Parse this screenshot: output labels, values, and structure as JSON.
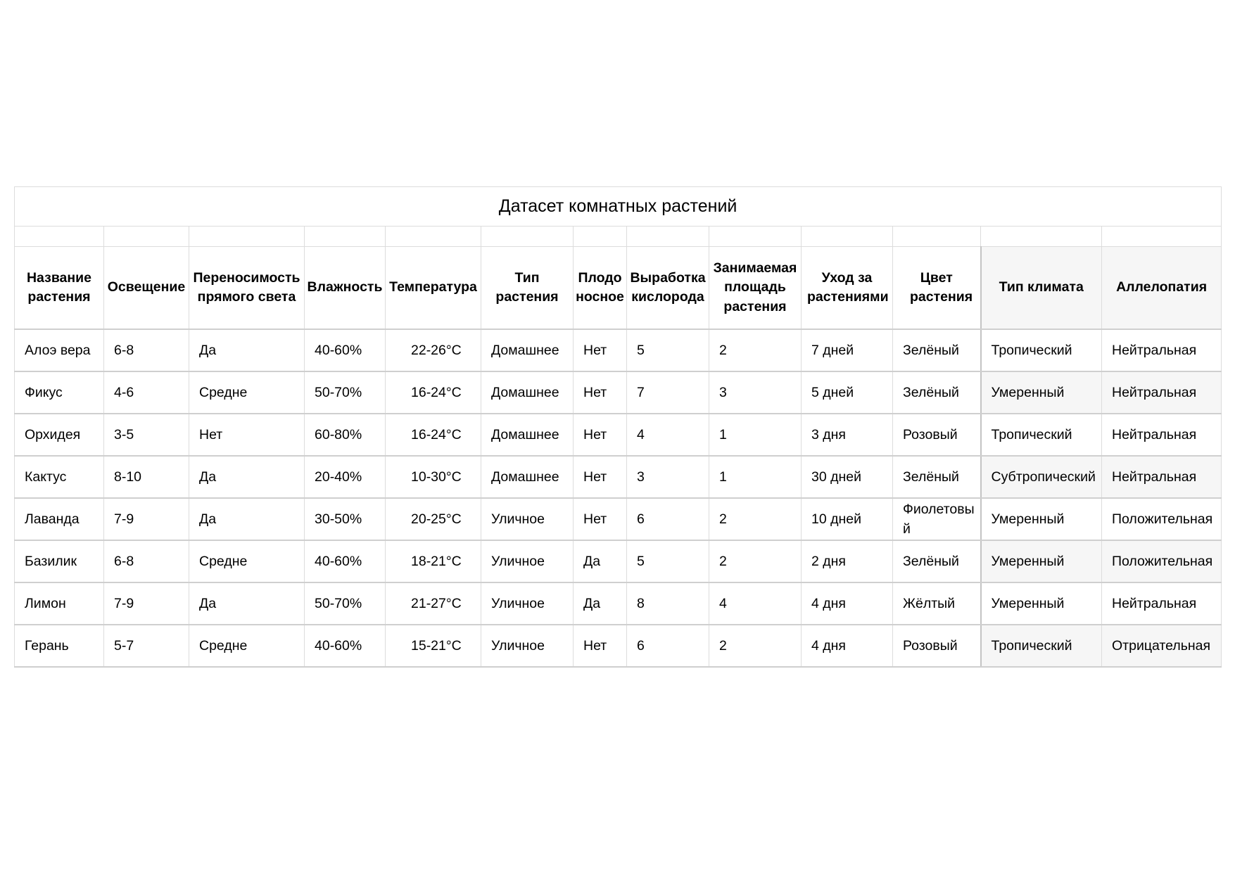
{
  "title": "Датасет комнатных растений",
  "columns": [
    "Название растения",
    "Освещение",
    "Переносимость прямого света",
    "Влажность",
    "Температура",
    "Тип растения",
    "Плодо носное",
    "Выработка кислорода",
    "Занимаемая площадь растения",
    "Уход за растениями",
    "Цвет растения",
    "Тип климата",
    "Аллелопатия"
  ],
  "rows": [
    [
      "Алоэ вера",
      "6-8",
      "Да",
      "40-60%",
      "22-26°C",
      "Домашнее",
      "Нет",
      "5",
      "2",
      "7 дней",
      "Зелёный",
      "Тропический",
      "Нейтральная"
    ],
    [
      "Фикус",
      "4-6",
      "Средне",
      "50-70%",
      "16-24°C",
      "Домашнее",
      "Нет",
      "7",
      "3",
      "5 дней",
      "Зелёный",
      "Умеренный",
      "Нейтральная"
    ],
    [
      "Орхидея",
      "3-5",
      "Нет",
      "60-80%",
      "16-24°C",
      "Домашнее",
      "Нет",
      "4",
      "1",
      "3 дня",
      "Розовый",
      "Тропический",
      "Нейтральная"
    ],
    [
      "Кактус",
      "8-10",
      "Да",
      "20-40%",
      "10-30°C",
      "Домашнее",
      "Нет",
      "3",
      "1",
      "30 дней",
      "Зелёный",
      "Субтропический",
      "Нейтральная"
    ],
    [
      "Лаванда",
      "7-9",
      "Да",
      "30-50%",
      "20-25°C",
      "Уличное",
      "Нет",
      "6",
      "2",
      "10 дней",
      "Фиолетовый",
      "Умеренный",
      "Положительная"
    ],
    [
      "Базилик",
      "6-8",
      "Средне",
      "40-60%",
      "18-21°C",
      "Уличное",
      "Да",
      "5",
      "2",
      "2 дня",
      "Зелёный",
      "Умеренный",
      "Положительная"
    ],
    [
      "Лимон",
      "7-9",
      "Да",
      "50-70%",
      "21-27°C",
      "Уличное",
      "Да",
      "8",
      "4",
      "4 дня",
      "Жёлтый",
      "Умеренный",
      "Нейтральная"
    ],
    [
      "Герань",
      "5-7",
      "Средне",
      "40-60%",
      "15-21°C",
      "Уличное",
      "Нет",
      "6",
      "2",
      "4 дня",
      "Розовый",
      "Тропический",
      "Отрицательная"
    ]
  ]
}
